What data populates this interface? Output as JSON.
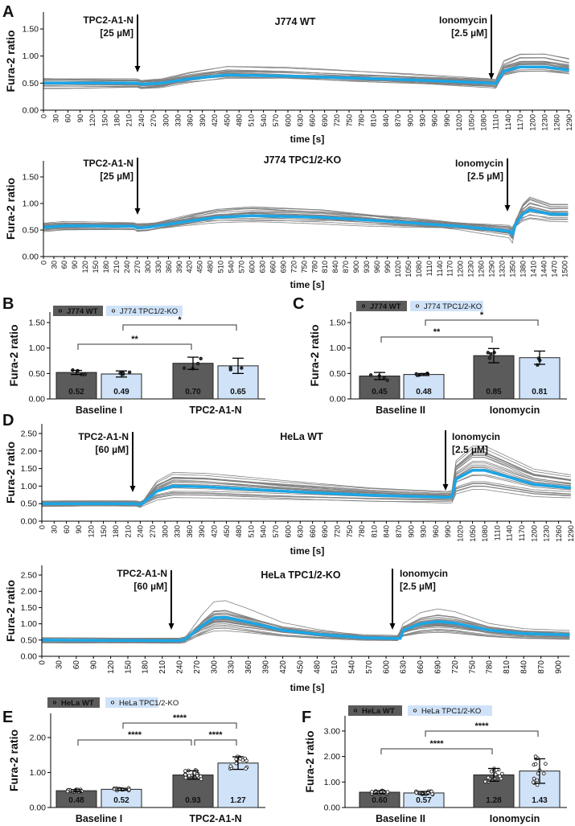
{
  "chart_data": [
    {
      "id": "A1",
      "panel_label": "A",
      "type": "line",
      "title": "J774 WT",
      "xlabel": "time [s]",
      "ylabel": "Fura-2 ratio",
      "xlim": [
        0,
        1290
      ],
      "xtick_step": 30,
      "ylim": [
        0,
        1.75
      ],
      "yticks": [
        0,
        0.5,
        1.0,
        1.5
      ],
      "annotations": [
        {
          "lines": [
            "TPC2-A1-N",
            "[25 µM]"
          ],
          "time": 230
        },
        {
          "lines": [
            "Ionomycin",
            "[2.5 µM]"
          ],
          "time": 1100
        }
      ],
      "mean_color": "#1ba6e6",
      "trace_color": "#808080",
      "n_traces": 22,
      "mean_trace": {
        "x": [
          0,
          230,
          240,
          290,
          360,
          450,
          600,
          900,
          1100,
          1110,
          1130,
          1170,
          1230,
          1290
        ],
        "y": [
          0.5,
          0.5,
          0.48,
          0.5,
          0.58,
          0.65,
          0.63,
          0.56,
          0.5,
          0.49,
          0.72,
          0.8,
          0.8,
          0.74
        ]
      }
    },
    {
      "id": "A2",
      "panel_label": "",
      "type": "line",
      "title": "J774 TPC1/2-KO",
      "xlabel": "time [s]",
      "ylabel": "Fura-2 ratio",
      "xlim": [
        0,
        1510
      ],
      "xtick_step": 30,
      "ylim": [
        0,
        1.8
      ],
      "yticks": [
        0,
        0.5,
        1.0,
        1.5
      ],
      "annotations": [
        {
          "lines": [
            "TPC2-A1-N",
            "[25 µM]"
          ],
          "time": 270
        },
        {
          "lines": [
            "Ionomycin",
            "[2.5 µM]"
          ],
          "time": 1340
        }
      ],
      "mean_color": "#1ba6e6",
      "trace_color": "#808080",
      "n_traces": 24,
      "mean_trace": {
        "x": [
          0,
          60,
          260,
          270,
          300,
          400,
          500,
          600,
          800,
          1000,
          1200,
          1340,
          1350,
          1360,
          1380,
          1400,
          1430,
          1460,
          1510
        ],
        "y": [
          0.55,
          0.58,
          0.57,
          0.54,
          0.55,
          0.65,
          0.74,
          0.77,
          0.74,
          0.66,
          0.57,
          0.48,
          0.42,
          0.62,
          0.8,
          0.88,
          0.84,
          0.8,
          0.8
        ]
      }
    },
    {
      "id": "B",
      "panel_label": "B",
      "type": "bar",
      "ylabel": "Fura-2 ratio",
      "ylim": [
        0,
        1.7
      ],
      "yticks": [
        0,
        0.5,
        1.0,
        1.5
      ],
      "categories": [
        "Baseline I",
        "TPC2-A1-N"
      ],
      "legend": [
        "J774 WT",
        "J774 TPC1/2-KO"
      ],
      "colors": [
        "#5b5b5b",
        "#cfe2f8"
      ],
      "bars": [
        {
          "group": 0,
          "series": 0,
          "value": 0.52,
          "label": "0.52",
          "sd": 0.04,
          "n": 4
        },
        {
          "group": 0,
          "series": 1,
          "value": 0.49,
          "label": "0.49",
          "sd": 0.06,
          "n": 4
        },
        {
          "group": 1,
          "series": 0,
          "value": 0.7,
          "label": "0.70",
          "sd": 0.12,
          "n": 4
        },
        {
          "group": 1,
          "series": 1,
          "value": 0.65,
          "label": "0.65",
          "sd": 0.15,
          "n": 3
        }
      ],
      "significance": [
        {
          "from": 0,
          "to": 2,
          "label": "**"
        },
        {
          "from": 1,
          "to": 3,
          "label": "*"
        }
      ]
    },
    {
      "id": "C",
      "panel_label": "C",
      "type": "bar",
      "ylabel": "Fura-2 ratio",
      "ylim": [
        0,
        1.7
      ],
      "yticks": [
        0,
        0.5,
        1.0,
        1.5
      ],
      "categories": [
        "Baseline II",
        "Ionomycin"
      ],
      "legend": [
        "J774 WT",
        "J774 TPC1/2-KO"
      ],
      "colors": [
        "#5b5b5b",
        "#cfe2f8"
      ],
      "bars": [
        {
          "group": 0,
          "series": 0,
          "value": 0.45,
          "label": "0.45",
          "sd": 0.07,
          "n": 4
        },
        {
          "group": 0,
          "series": 1,
          "value": 0.48,
          "label": "0.48",
          "sd": 0.02,
          "n": 4
        },
        {
          "group": 1,
          "series": 0,
          "value": 0.85,
          "label": "0.85",
          "sd": 0.14,
          "n": 4
        },
        {
          "group": 1,
          "series": 1,
          "value": 0.81,
          "label": "0.81",
          "sd": 0.13,
          "n": 3
        }
      ],
      "significance": [
        {
          "from": 0,
          "to": 2,
          "label": "**"
        },
        {
          "from": 1,
          "to": 3,
          "label": "*"
        }
      ]
    },
    {
      "id": "D1",
      "panel_label": "D",
      "type": "line",
      "title": "HeLa WT",
      "xlabel": "time [s]",
      "ylabel": "Fura-2 ratio",
      "xlim": [
        0,
        1290
      ],
      "xtick_step": 30,
      "ylim": [
        0,
        2.75
      ],
      "yticks": [
        0,
        0.5,
        1.0,
        1.5,
        2.0,
        2.5
      ],
      "annotations": [
        {
          "lines": [
            "TPC2-A1-N",
            "[60 µM]"
          ],
          "time": 225
        },
        {
          "lines": [
            "Ionomycin",
            "[2.5 µM]"
          ],
          "time": 985
        }
      ],
      "mean_color": "#1ba6e6",
      "trace_color": "#808080",
      "n_traces": 24,
      "mean_trace": {
        "x": [
          0,
          230,
          240,
          250,
          280,
          320,
          400,
          600,
          800,
          990,
          1000,
          1010,
          1050,
          1080,
          1140,
          1200,
          1290
        ],
        "y": [
          0.5,
          0.5,
          0.47,
          0.55,
          0.85,
          1.0,
          0.98,
          0.85,
          0.74,
          0.68,
          0.7,
          1.2,
          1.45,
          1.45,
          1.25,
          1.05,
          0.95
        ]
      }
    },
    {
      "id": "D2",
      "panel_label": "",
      "type": "line",
      "title": "HeLa TPC1/2-KO",
      "xlabel": "time [s]",
      "ylabel": "Fura-2 ratio",
      "xlim": [
        0,
        920
      ],
      "xtick_step": 30,
      "ylim": [
        0,
        2.75
      ],
      "yticks": [
        0,
        0.5,
        1.0,
        1.5,
        2.0,
        2.5
      ],
      "annotations": [
        {
          "lines": [
            "TPC2-A1-N",
            "[60 µM]"
          ],
          "time": 225
        },
        {
          "lines": [
            "Ionomycin",
            "[2.5 µM]"
          ],
          "time": 610
        }
      ],
      "mean_color": "#1ba6e6",
      "trace_color": "#808080",
      "n_traces": 26,
      "mean_trace": {
        "x": [
          0,
          240,
          250,
          280,
          300,
          320,
          360,
          420,
          480,
          560,
          625,
          630,
          660,
          690,
          720,
          780,
          840,
          920
        ],
        "y": [
          0.5,
          0.48,
          0.52,
          0.95,
          1.18,
          1.2,
          1.05,
          0.8,
          0.68,
          0.57,
          0.55,
          0.8,
          1.0,
          1.07,
          1.02,
          0.8,
          0.7,
          0.66
        ]
      }
    },
    {
      "id": "E",
      "panel_label": "E",
      "type": "bar",
      "ylabel": "Fura-2 ratio",
      "ylim": [
        0,
        2.7
      ],
      "yticks": [
        0,
        1.0,
        2.0
      ],
      "categories": [
        "Baseline I",
        "TPC2-A1-N"
      ],
      "legend": [
        "HeLa WT",
        "HeLa TPC1/2-KO"
      ],
      "colors": [
        "#5b5b5b",
        "#cfe2f8"
      ],
      "bars": [
        {
          "group": 0,
          "series": 0,
          "value": 0.48,
          "label": "0.48",
          "sd": 0.03,
          "n": 16
        },
        {
          "group": 0,
          "series": 1,
          "value": 0.52,
          "label": "0.52",
          "sd": 0.03,
          "n": 14
        },
        {
          "group": 1,
          "series": 0,
          "value": 0.93,
          "label": "0.93",
          "sd": 0.12,
          "n": 16
        },
        {
          "group": 1,
          "series": 1,
          "value": 1.27,
          "label": "1.27",
          "sd": 0.18,
          "n": 14
        }
      ],
      "significance": [
        {
          "from": 0,
          "to": 2,
          "label": "****"
        },
        {
          "from": 2,
          "to": 3,
          "label": "****"
        },
        {
          "from": 1,
          "to": 3,
          "label": "****"
        }
      ]
    },
    {
      "id": "F",
      "panel_label": "F",
      "type": "bar",
      "ylabel": "Fura-2 ratio",
      "ylim": [
        0,
        3.6
      ],
      "yticks": [
        0,
        1.0,
        2.0,
        3.0
      ],
      "categories": [
        "Baseline II",
        "Ionomycin"
      ],
      "legend": [
        "HeLa WT",
        "HeLa TPC1/2-KO"
      ],
      "colors": [
        "#5b5b5b",
        "#cfe2f8"
      ],
      "bars": [
        {
          "group": 0,
          "series": 0,
          "value": 0.6,
          "label": "0.60",
          "sd": 0.06,
          "n": 16
        },
        {
          "group": 0,
          "series": 1,
          "value": 0.57,
          "label": "0.57",
          "sd": 0.06,
          "n": 14
        },
        {
          "group": 1,
          "series": 0,
          "value": 1.28,
          "label": "1.28",
          "sd": 0.25,
          "n": 16
        },
        {
          "group": 1,
          "series": 1,
          "value": 1.43,
          "label": "1.43",
          "sd": 0.48,
          "n": 14
        }
      ],
      "significance": [
        {
          "from": 0,
          "to": 2,
          "label": "****"
        },
        {
          "from": 1,
          "to": 3,
          "label": "****"
        }
      ]
    }
  ]
}
